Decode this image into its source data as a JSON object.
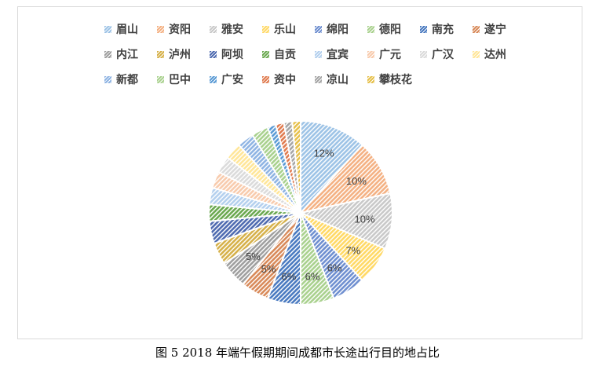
{
  "chart_data": {
    "type": "pie",
    "title": "",
    "legend_position": "top",
    "slices": [
      {
        "name": "眉山",
        "value": 12,
        "label": "12%",
        "color": "#9dc3e6"
      },
      {
        "name": "资阳",
        "value": 10,
        "label": "10%",
        "color": "#f4b183"
      },
      {
        "name": "雅安",
        "value": 10,
        "label": "10%",
        "color": "#c9c9c9"
      },
      {
        "name": "乐山",
        "value": 7,
        "label": "7%",
        "color": "#ffd966"
      },
      {
        "name": "绵阳",
        "value": 6,
        "label": "6%",
        "color": "#6f8fd0"
      },
      {
        "name": "德阳",
        "value": 6,
        "label": "6%",
        "color": "#a9d18e"
      },
      {
        "name": "南充",
        "value": 6,
        "label": "6%",
        "color": "#4a7ac0"
      },
      {
        "name": "遂宁",
        "value": 5,
        "label": "5%",
        "color": "#d88a5a"
      },
      {
        "name": "内江",
        "value": 5,
        "label": "5%",
        "color": "#9f9f9f"
      },
      {
        "name": "泸州",
        "value": 4,
        "label": "",
        "color": "#d6b14a"
      },
      {
        "name": "阿坝",
        "value": 4,
        "label": "",
        "color": "#4f6bb0"
      },
      {
        "name": "自贡",
        "value": 3,
        "label": "",
        "color": "#6aa84f"
      },
      {
        "name": "宜宾",
        "value": 3,
        "label": "",
        "color": "#b4d0ee"
      },
      {
        "name": "广元",
        "value": 3,
        "label": "",
        "color": "#f8cbad"
      },
      {
        "name": "广汉",
        "value": 3,
        "label": "",
        "color": "#dbdbdb"
      },
      {
        "name": "达州",
        "value": 3,
        "label": "",
        "color": "#ffe699"
      },
      {
        "name": "新都",
        "value": 3,
        "label": "",
        "color": "#8fb4e3"
      },
      {
        "name": "巴中",
        "value": 3,
        "label": "",
        "color": "#a9d18e"
      },
      {
        "name": "广安",
        "value": 1.5,
        "label": "",
        "color": "#5b9bd5"
      },
      {
        "name": "资中",
        "value": 1.5,
        "label": "",
        "color": "#e07b4f"
      },
      {
        "name": "凉山",
        "value": 1.5,
        "label": "",
        "color": "#a5a5a5"
      },
      {
        "name": "攀枝花",
        "value": 1.5,
        "label": "",
        "color": "#e6c04a"
      }
    ]
  },
  "caption": "图 5 2018 年端午假期期间成都市长途出行目的地占比"
}
